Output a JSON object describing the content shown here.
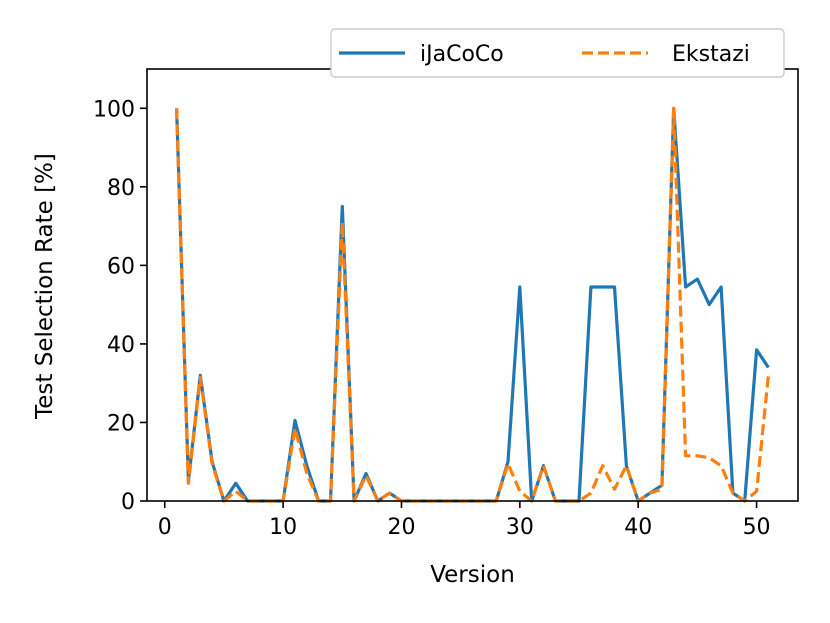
{
  "chart_data": {
    "type": "line",
    "title": "",
    "xlabel": "Version",
    "ylabel": "Test Selection Rate [%]",
    "xlim": [
      -1.5,
      53.5
    ],
    "ylim": [
      0,
      110
    ],
    "xticks": [
      0,
      10,
      20,
      30,
      40,
      50
    ],
    "yticks": [
      0,
      20,
      40,
      60,
      80,
      100
    ],
    "grid": false,
    "legend_position": "top-right",
    "x": [
      1,
      2,
      3,
      4,
      5,
      6,
      7,
      8,
      9,
      10,
      11,
      12,
      13,
      14,
      15,
      16,
      17,
      18,
      19,
      20,
      21,
      22,
      23,
      24,
      25,
      26,
      27,
      28,
      29,
      30,
      31,
      32,
      33,
      34,
      35,
      36,
      37,
      38,
      39,
      40,
      41,
      42,
      43,
      44,
      45,
      46,
      47,
      48,
      49,
      50,
      51
    ],
    "series": [
      {
        "name": "iJaCoCo",
        "color": "#1f77b4",
        "style": "solid",
        "values": [
          100,
          5,
          32,
          10,
          0,
          4.5,
          0,
          0,
          0,
          0,
          20.5,
          9,
          0,
          0,
          75,
          0,
          7,
          0,
          2,
          0,
          0,
          0,
          0,
          0,
          0,
          0,
          0,
          0,
          10,
          54.5,
          0,
          9,
          0,
          0,
          0,
          54.5,
          54.5,
          54.5,
          9,
          0,
          2,
          4,
          100,
          54.5,
          56.5,
          50,
          54.5,
          2,
          0,
          38.5,
          34
        ]
      },
      {
        "name": "Ekstazi",
        "color": "#ff7f0e",
        "style": "dashed",
        "values": [
          100,
          4.5,
          31.5,
          9.5,
          0,
          2.5,
          0,
          0,
          0,
          0,
          18.5,
          7,
          0,
          0,
          71,
          0,
          6.5,
          0,
          2,
          0,
          0,
          0,
          0,
          0,
          0,
          0,
          0,
          0,
          9.5,
          2.5,
          0,
          9,
          0,
          0,
          0,
          2,
          9,
          3,
          9,
          0,
          2,
          3,
          100,
          11.5,
          11.5,
          11,
          9,
          2,
          0,
          2.5,
          32
        ]
      }
    ]
  }
}
